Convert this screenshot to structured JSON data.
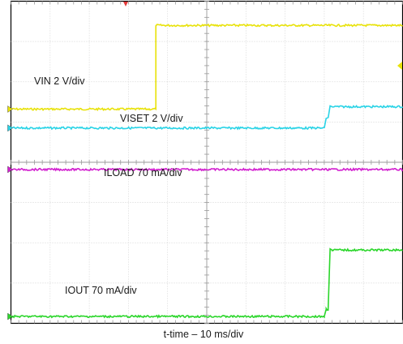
{
  "chart_data": {
    "type": "line",
    "title": "",
    "xlabel": "t-time – 10 ms/div",
    "ylabel": "",
    "grid": true,
    "x_divisions": 10,
    "y_divisions": 8,
    "xlim": [
      0,
      100
    ],
    "x_unit": "ms",
    "series": [
      {
        "name": "VIN 2 V/div",
        "color": "#e8e20a",
        "x": [
          0,
          37,
          37,
          100
        ],
        "y": [
          5.32,
          5.32,
          7.4,
          7.4
        ]
      },
      {
        "name": "VISET 2 V/div",
        "color": "#29d3e6",
        "x": [
          0,
          80,
          80.5,
          81,
          81.5,
          82,
          100
        ],
        "y": [
          4.85,
          4.85,
          5.1,
          5.1,
          5.4,
          5.38,
          5.38
        ]
      },
      {
        "name": "ILOAD 70 mA/div",
        "color": "#d21fcf",
        "x": [
          0,
          100
        ],
        "y": [
          3.82,
          3.82
        ]
      },
      {
        "name": "IOUT 70 mA/div",
        "color": "#2bd62b",
        "x": [
          0,
          80,
          80.5,
          81,
          81.5,
          82,
          100
        ],
        "y": [
          0.17,
          0.17,
          0.35,
          0.35,
          1.85,
          1.82,
          1.82
        ]
      }
    ]
  }
}
